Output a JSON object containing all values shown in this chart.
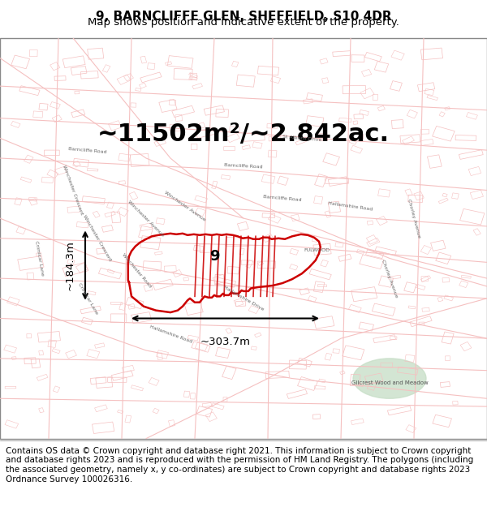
{
  "title": "9, BARNCLIFFE GLEN, SHEFFIELD, S10 4DR",
  "subtitle": "Map shows position and indicative extent of the property.",
  "area_text": "~11502m²/~2.842ac.",
  "width_label": "~303.7m",
  "height_label": "~184.3m",
  "property_label": "9",
  "footer_text": "Contains OS data © Crown copyright and database right 2021. This information is subject to Crown copyright and database rights 2023 and is reproduced with the permission of HM Land Registry. The polygons (including the associated geometry, namely x, y co-ordinates) are subject to Crown copyright and database rights 2023 Ordnance Survey 100026316.",
  "map_bg": "#ffffff",
  "title_bg": "#ffffff",
  "footer_bg": "#ffffff",
  "road_color": "#e88080",
  "road_color_light": "#f5c0c0",
  "property_outline_color": "#cc0000",
  "text_color": "#000000",
  "gray_road_color": "#c0c0c0",
  "title_fontsize": 11,
  "subtitle_fontsize": 9.5,
  "area_fontsize": 22,
  "footer_fontsize": 7.5
}
